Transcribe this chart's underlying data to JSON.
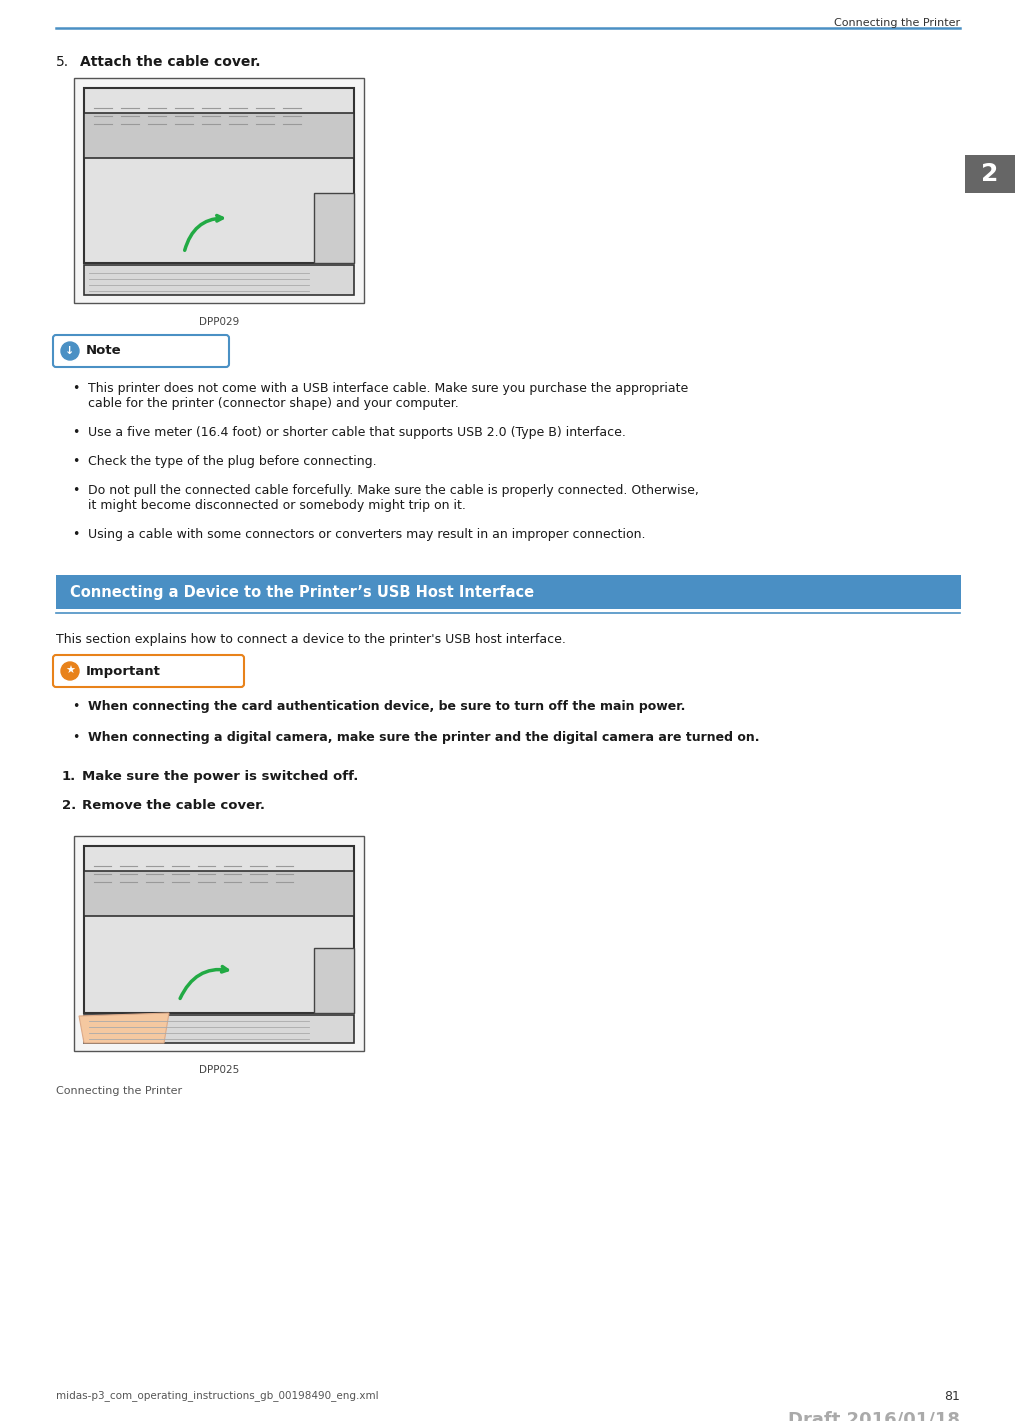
{
  "page_title": "Connecting the Printer",
  "header_line_color": "#4a90c4",
  "page_number": "81",
  "footer_left": "midas-p3_com_operating_instructions_gb_00198490_eng.xml",
  "footer_draft": "Draft 2016/01/18",
  "footer_draft_color": "#aaaaaa",
  "image1_caption": "DPP029",
  "image2_caption": "DPP025",
  "note_label": "Note",
  "note_border": "#4a90c4",
  "note_icon_color": "#4a90c4",
  "bullet_points": [
    "This printer does not come with a USB interface cable. Make sure you purchase the appropriate\ncable for the printer (connector shape) and your computer.",
    "Use a five meter (16.4 foot) or shorter cable that supports USB 2.0 (Type B) interface.",
    "Check the type of the plug before connecting.",
    "Do not pull the connected cable forcefully. Make sure the cable is properly connected. Otherwise,\nit might become disconnected or somebody might trip on it.",
    "Using a cable with some connectors or converters may result in an improper connection."
  ],
  "section_title": "Connecting a Device to the Printer’s USB Host Interface",
  "section_bg": "#4a8fc4",
  "section_title_color": "#ffffff",
  "section_intro": "This section explains how to connect a device to the printer's USB host interface.",
  "important_label": "Important",
  "important_border": "#e8821a",
  "important_icon_color": "#e8821a",
  "important_bullets": [
    "When connecting the card authentication device, be sure to turn off the main power.",
    "When connecting a digital camera, make sure the printer and the digital camera are turned on."
  ],
  "numbered_steps": [
    "Make sure the power is switched off.",
    "Remove the cable cover."
  ],
  "sidebar_number": "2",
  "sidebar_bg": "#666666",
  "sidebar_text_color": "#ffffff",
  "body_text_color": "#1a1a1a",
  "line_color": "#4a90c4"
}
